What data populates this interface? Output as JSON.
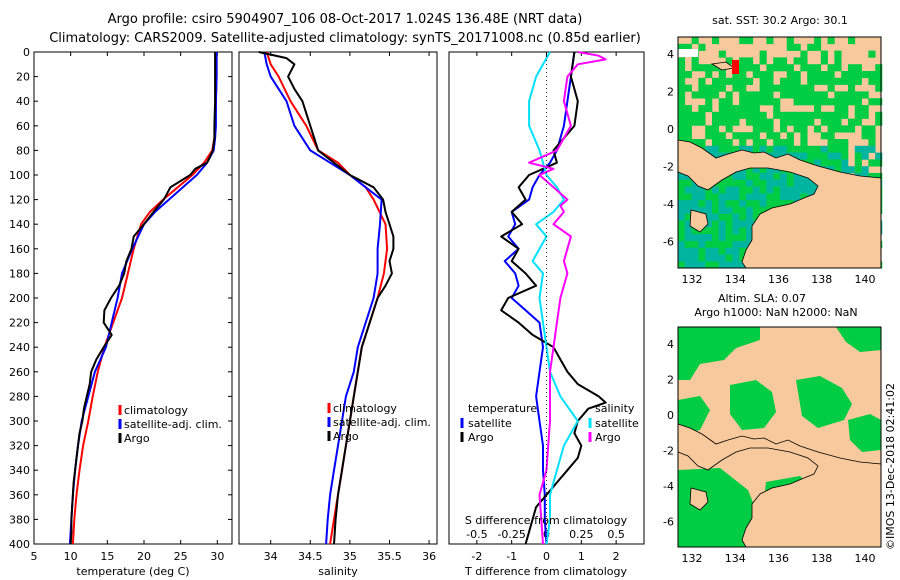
{
  "titles": {
    "line1": "Argo profile: csiro 5904907_106 08-Oct-2017 1.024S 136.48E (NRT data)",
    "line2": "Climatology: CARS2009. Satellite-adjusted climatology: synTS_20171008.nc (0.85d earlier)"
  },
  "chart_data": [
    {
      "type": "line",
      "id": "temperature",
      "xlabel": "temperature (deg C)",
      "ylabel": "depth",
      "xlim": [
        5,
        32
      ],
      "ylim": [
        400,
        0
      ],
      "xticks": [
        5,
        10,
        15,
        20,
        25,
        30
      ],
      "yticks": [
        0,
        20,
        40,
        60,
        80,
        100,
        120,
        140,
        160,
        180,
        200,
        220,
        240,
        260,
        280,
        300,
        320,
        340,
        360,
        380,
        400
      ],
      "legend": [
        "climatology",
        "satellite-adj. clim.",
        "Argo"
      ],
      "series": [
        {
          "name": "climatology",
          "color": "#ff0000",
          "depth": [
            0,
            20,
            40,
            60,
            70,
            80,
            90,
            100,
            110,
            120,
            130,
            140,
            160,
            180,
            200,
            220,
            240,
            260,
            280,
            300,
            320,
            340,
            360,
            380,
            400
          ],
          "values": [
            29.9,
            29.9,
            29.8,
            29.7,
            29.6,
            29.3,
            28.2,
            26.6,
            24.6,
            22.6,
            20.8,
            19.6,
            18.6,
            17.8,
            17.0,
            15.8,
            14.6,
            13.7,
            13.0,
            12.4,
            11.7,
            11.2,
            10.8,
            10.5,
            10.3
          ]
        },
        {
          "name": "satellite-adj. clim.",
          "color": "#0000ff",
          "depth": [
            0,
            20,
            40,
            60,
            70,
            80,
            90,
            100,
            110,
            120,
            130,
            140,
            160,
            180,
            200,
            220,
            240,
            260,
            280,
            300,
            320,
            340,
            360,
            380,
            400
          ],
          "values": [
            29.9,
            29.9,
            29.8,
            29.8,
            29.7,
            29.5,
            28.6,
            27.2,
            25.3,
            23.4,
            21.5,
            20.0,
            18.4,
            17.0,
            16.4,
            15.6,
            14.8,
            13.3,
            12.4,
            11.5,
            11.0,
            10.6,
            10.3,
            10.1,
            9.9
          ]
        },
        {
          "name": "Argo",
          "color": "#000000",
          "depth": [
            0,
            20,
            40,
            60,
            70,
            80,
            90,
            95,
            100,
            110,
            120,
            130,
            140,
            150,
            160,
            170,
            180,
            190,
            200,
            210,
            220,
            230,
            240,
            250,
            260,
            270,
            280,
            290,
            300,
            310,
            320,
            330,
            340,
            350,
            360,
            370,
            380,
            390,
            400
          ],
          "values": [
            29.7,
            29.7,
            29.7,
            29.6,
            29.6,
            29.4,
            28.6,
            27.0,
            26.3,
            23.6,
            22.7,
            21.3,
            20.0,
            18.6,
            18.3,
            17.6,
            17.3,
            16.6,
            15.5,
            14.6,
            14.5,
            15.6,
            14.5,
            13.5,
            12.8,
            12.6,
            12.2,
            11.8,
            11.6,
            11.2,
            11.0,
            10.8,
            10.6,
            10.4,
            10.3,
            10.2,
            10.1,
            10.1,
            10.0
          ]
        }
      ]
    },
    {
      "type": "line",
      "id": "salinity",
      "xlabel": "salinity",
      "xlim": [
        33.6,
        36.1
      ],
      "ylim": [
        400,
        0
      ],
      "xticks": [
        34,
        34.5,
        35,
        35.5,
        36
      ],
      "legend": [
        "climatology",
        "satellite-adj. clim.",
        "Argo"
      ],
      "series": [
        {
          "name": "climatology",
          "color": "#ff0000",
          "depth": [
            0,
            10,
            20,
            40,
            60,
            80,
            90,
            100,
            110,
            120,
            140,
            160,
            180,
            200,
            220,
            240,
            260,
            280,
            300,
            320,
            340,
            360,
            380,
            400
          ],
          "values": [
            33.95,
            34.0,
            34.1,
            34.25,
            34.45,
            34.6,
            34.85,
            35.0,
            35.2,
            35.3,
            35.45,
            35.47,
            35.43,
            35.35,
            35.25,
            35.15,
            35.1,
            35.05,
            35.0,
            34.95,
            34.9,
            34.85,
            34.8,
            34.75
          ]
        },
        {
          "name": "satellite-adj. clim.",
          "color": "#0000ff",
          "depth": [
            0,
            10,
            20,
            40,
            60,
            80,
            90,
            100,
            110,
            120,
            140,
            160,
            180,
            200,
            220,
            240,
            260,
            280,
            300,
            320,
            340,
            360,
            380,
            400
          ],
          "values": [
            33.92,
            33.95,
            34.0,
            34.2,
            34.3,
            34.5,
            34.75,
            35.0,
            35.2,
            35.4,
            35.38,
            35.35,
            35.35,
            35.3,
            35.2,
            35.1,
            35.05,
            34.95,
            34.9,
            34.85,
            34.8,
            34.75,
            34.72,
            34.7
          ]
        },
        {
          "name": "Argo",
          "color": "#000000",
          "depth": [
            0,
            5,
            10,
            20,
            30,
            40,
            60,
            70,
            80,
            90,
            100,
            110,
            120,
            130,
            140,
            150,
            160,
            170,
            180,
            190,
            200,
            220,
            240,
            260,
            280,
            300,
            320,
            340,
            360,
            380,
            400
          ],
          "values": [
            33.85,
            34.2,
            34.3,
            34.22,
            34.3,
            34.4,
            34.5,
            34.55,
            34.6,
            34.8,
            35.0,
            35.3,
            35.42,
            35.45,
            35.5,
            35.55,
            35.55,
            35.5,
            35.53,
            35.45,
            35.35,
            35.25,
            35.15,
            35.1,
            35.05,
            35.0,
            34.95,
            34.9,
            34.85,
            34.82,
            34.8
          ]
        }
      ]
    },
    {
      "type": "line",
      "id": "difference",
      "xlabel": "T difference from climatology",
      "xlabel_top": "S difference from climatology",
      "xlim": [
        -2.8,
        2.8
      ],
      "ylim": [
        400,
        0
      ],
      "xticks": [
        -2,
        -1,
        0,
        1,
        2
      ],
      "xticks_top": [
        "-0.5",
        "-0.25",
        "0",
        "0.25",
        "0.5"
      ],
      "xticks_top_values": [
        -2,
        -1,
        0,
        1,
        2
      ],
      "legend_left_title": "temperature",
      "legend_right_title": "salinity",
      "legend_left": [
        "satellite",
        "Argo"
      ],
      "legend_right": [
        "satellite",
        "Argo"
      ],
      "series": [
        {
          "name": "temperature satellite",
          "color": "#0000ff",
          "depth": [
            0,
            20,
            40,
            60,
            80,
            90,
            100,
            110,
            120,
            130,
            140,
            150,
            160,
            170,
            180,
            190,
            200,
            210,
            220,
            240,
            260,
            280,
            300,
            320,
            340,
            360,
            380,
            400
          ],
          "values": [
            0.8,
            0.7,
            0.6,
            0.5,
            0.3,
            0.1,
            -0.2,
            -0.4,
            -0.5,
            -1.0,
            -0.9,
            -1.1,
            -0.8,
            -1.2,
            -0.9,
            -0.8,
            -1.0,
            -0.6,
            -0.2,
            -0.1,
            -0.2,
            -0.3,
            -0.2,
            -0.1,
            -0.1,
            -0.05,
            -0.05,
            0.0
          ]
        },
        {
          "name": "temperature Argo",
          "color": "#000000",
          "depth": [
            0,
            20,
            40,
            60,
            80,
            90,
            100,
            110,
            120,
            130,
            140,
            150,
            160,
            170,
            180,
            190,
            200,
            210,
            220,
            230,
            240,
            250,
            260,
            270,
            280,
            285,
            290,
            300,
            310,
            320,
            330,
            340,
            350,
            360,
            370,
            380,
            390,
            400
          ],
          "values": [
            0.8,
            0.7,
            0.9,
            0.8,
            0.2,
            0.3,
            -0.5,
            -0.8,
            -0.6,
            -1.0,
            -0.7,
            -1.3,
            -0.8,
            -1.0,
            -0.6,
            -0.3,
            -1.1,
            -1.3,
            -0.8,
            -0.4,
            0.2,
            0.4,
            0.6,
            0.9,
            1.5,
            1.7,
            1.2,
            0.9,
            0.8,
            1.0,
            0.9,
            0.6,
            0.3,
            0.0,
            -0.3,
            -0.4,
            -0.5,
            -0.6
          ]
        },
        {
          "name": "salinity satellite",
          "color": "#00e0ff",
          "depth": [
            0,
            20,
            40,
            60,
            80,
            100,
            110,
            120,
            130,
            140,
            150,
            160,
            170,
            180,
            200,
            220,
            240,
            260,
            280,
            300,
            320,
            340,
            360,
            380,
            400
          ],
          "values": [
            0.1,
            -0.3,
            -0.5,
            -0.5,
            -0.2,
            0.0,
            0.3,
            0.5,
            0.2,
            -0.3,
            0.0,
            -0.2,
            -0.4,
            -0.1,
            -0.2,
            -0.1,
            0.0,
            0.1,
            0.4,
            0.9,
            0.5,
            0.3,
            0.1,
            0.1,
            0.0
          ]
        },
        {
          "name": "salinity Argo",
          "color": "#ff00ff",
          "depth": [
            0,
            3,
            6,
            10,
            20,
            40,
            60,
            80,
            90,
            95,
            100,
            110,
            120,
            125,
            130,
            140,
            150,
            160,
            170,
            180,
            200,
            220,
            240,
            260,
            280,
            300,
            320,
            340,
            360,
            380,
            400
          ],
          "values": [
            0.9,
            1.5,
            1.7,
            0.9,
            0.6,
            0.5,
            0.7,
            0.3,
            -0.5,
            0.2,
            -0.2,
            0.2,
            0.6,
            0.4,
            0.5,
            0.2,
            0.7,
            0.6,
            0.5,
            0.6,
            0.4,
            0.3,
            0.2,
            0.1,
            0.1,
            0.1,
            0.05,
            0.0,
            -0.2,
            -0.15,
            -0.1
          ]
        }
      ]
    }
  ],
  "maps": {
    "top_title": "sat. SST: 30.2 Argo: 30.1",
    "bottom_title_line1": "Altim. SLA: 0.07",
    "bottom_title_line2": "Argo h1000: NaN h2000: NaN",
    "lon_ticks": [
      "132",
      "134",
      "136",
      "138",
      "140"
    ],
    "lat_ticks": [
      "4",
      "2",
      "0",
      "-2",
      "-4",
      "-6"
    ],
    "land_color": "#f7c99c",
    "green_color": "#00cc44",
    "cyan_color": "#00b5a0",
    "marker_color": "#ff0000"
  },
  "footer": {
    "stamp": "©IMOS 13-Dec-2018 02:41:02"
  }
}
